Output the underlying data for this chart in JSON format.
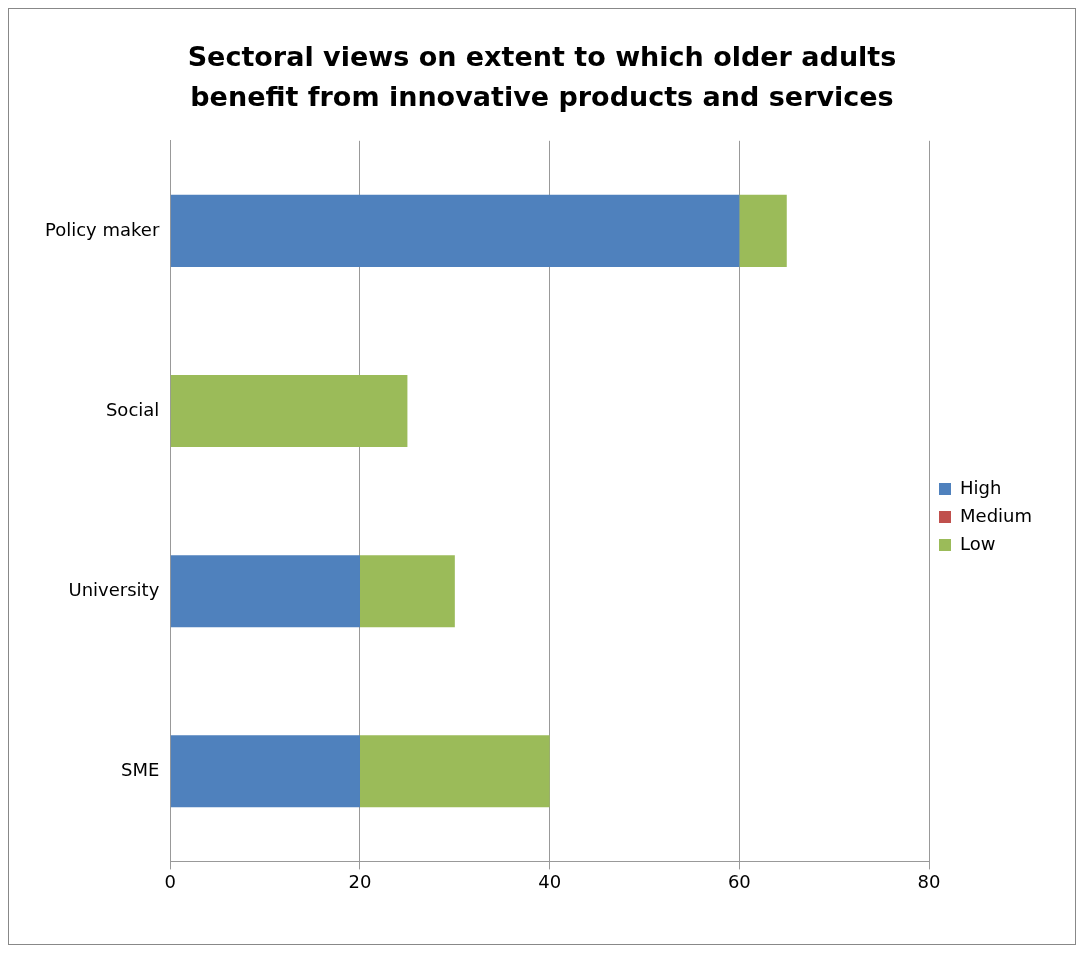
{
  "chart_data": {
    "type": "bar",
    "orientation": "horizontal",
    "stacked": true,
    "title": "Sectoral views on extent to which older adults benefit from innovative products and services",
    "categories": [
      "Policy maker",
      "Social",
      "University",
      "SME"
    ],
    "series": [
      {
        "name": "High",
        "color": "#4f81bd",
        "values": [
          60,
          0,
          20,
          20
        ]
      },
      {
        "name": "Medium",
        "color": "#c0504d",
        "values": [
          0,
          0,
          0,
          0
        ]
      },
      {
        "name": "Low",
        "color": "#9bbb59",
        "values": [
          5,
          25,
          10,
          20
        ]
      }
    ],
    "xlim": [
      0,
      80
    ],
    "xticks": [
      0,
      20,
      40,
      60,
      80
    ],
    "grid": "x",
    "legend": "right"
  }
}
